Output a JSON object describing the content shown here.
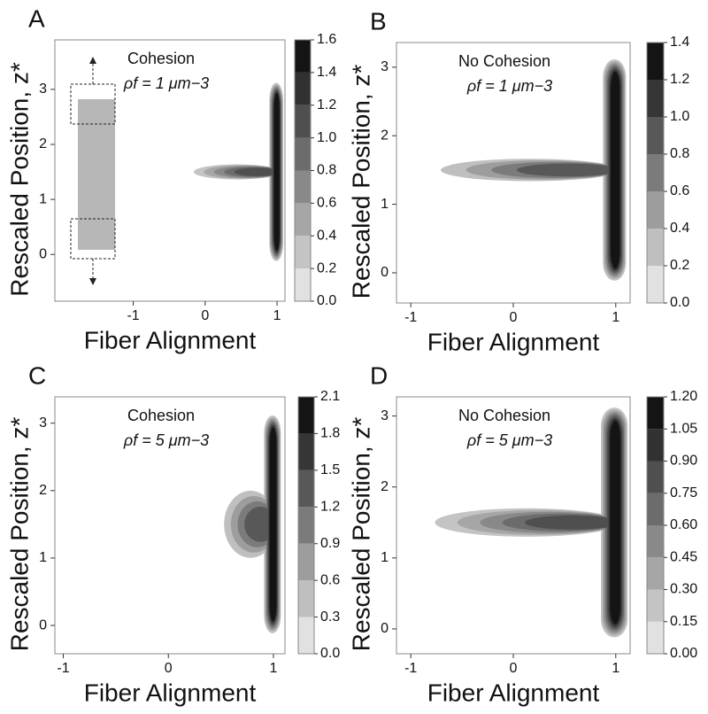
{
  "chart_data": [
    {
      "type": "contour",
      "title": "A",
      "annotation": [
        "Cohesion",
        "ρf = 1 μm−3"
      ],
      "xlabel": "Fiber Alignment",
      "ylabel": "Rescaled Position, z*",
      "xlim": [
        -2.09,
        1.11
      ],
      "ylim": [
        -0.85,
        3.9
      ],
      "xticks": [
        -1,
        0,
        1
      ],
      "yticks": [
        0,
        1,
        2,
        3
      ],
      "colorbar_ticks": [
        {
          "value": 0,
          "label": "0.0"
        },
        {
          "value": 0.2,
          "label": "0.2"
        },
        {
          "value": 0.4,
          "label": "0.4"
        },
        {
          "value": 0.6,
          "label": "0.6"
        },
        {
          "value": 0.8,
          "label": "0.8"
        },
        {
          "value": 1,
          "label": "1.0"
        },
        {
          "value": 1.2,
          "label": "1.2"
        },
        {
          "value": 1.4,
          "label": "1.4"
        },
        {
          "value": 1.6,
          "label": "1.6"
        }
      ]
    },
    {
      "type": "contour",
      "title": "B",
      "annotation": [
        "No Cohesion",
        "ρf = 1 μm−3"
      ],
      "xlabel": "Fiber Alignment",
      "ylabel": "Rescaled Position, z*",
      "xlim": [
        -1.14,
        1.14
      ],
      "ylim": [
        -0.44,
        3.36
      ],
      "xticks": [
        -1,
        0,
        1
      ],
      "yticks": [
        0,
        1,
        2,
        3
      ],
      "colorbar_ticks": [
        {
          "value": 0,
          "label": "0.0"
        },
        {
          "value": 0.2,
          "label": "0.2"
        },
        {
          "value": 0.4,
          "label": "0.4"
        },
        {
          "value": 0.6,
          "label": "0.6"
        },
        {
          "value": 0.8,
          "label": "0.8"
        },
        {
          "value": 1,
          "label": "1.0"
        },
        {
          "value": 1.2,
          "label": "1.2"
        },
        {
          "value": 1.4,
          "label": "1.4"
        }
      ]
    },
    {
      "type": "contour",
      "title": "C",
      "annotation": [
        "Cohesion",
        "ρf = 5 μm−3"
      ],
      "xlabel": "Fiber Alignment",
      "ylabel": "Rescaled Position, z*",
      "xlim": [
        -1.08,
        1.11
      ],
      "ylim": [
        -0.42,
        3.39
      ],
      "xticks": [
        -1,
        0,
        1
      ],
      "yticks": [
        0,
        1,
        2,
        3
      ],
      "colorbar_ticks": [
        {
          "value": 0,
          "label": "0.0"
        },
        {
          "value": 0.3,
          "label": "0.3"
        },
        {
          "value": 0.6,
          "label": "0.6"
        },
        {
          "value": 0.9,
          "label": "0.9"
        },
        {
          "value": 1.2,
          "label": "1.2"
        },
        {
          "value": 1.5,
          "label": "1.5"
        },
        {
          "value": 1.8,
          "label": "1.8"
        },
        {
          "value": 2.1,
          "label": "2.1"
        }
      ]
    },
    {
      "type": "contour",
      "title": "D",
      "annotation": [
        "No Cohesion",
        "ρf = 5 μm−3"
      ],
      "xlabel": "Fiber Alignment",
      "ylabel": "Rescaled Position, z*",
      "xlim": [
        -1.14,
        1.14
      ],
      "ylim": [
        -0.35,
        3.27
      ],
      "xticks": [
        -1,
        0,
        1
      ],
      "yticks": [
        0,
        1,
        2,
        3
      ],
      "colorbar_ticks": [
        {
          "value": 0,
          "label": "0.00"
        },
        {
          "value": 0.15,
          "label": "0.15"
        },
        {
          "value": 0.3,
          "label": "0.30"
        },
        {
          "value": 0.45,
          "label": "0.45"
        },
        {
          "value": 0.6,
          "label": "0.60"
        },
        {
          "value": 0.75,
          "label": "0.75"
        },
        {
          "value": 0.9,
          "label": "0.90"
        },
        {
          "value": 1.05,
          "label": "1.05"
        },
        {
          "value": 1.2,
          "label": "1.20"
        }
      ]
    }
  ]
}
